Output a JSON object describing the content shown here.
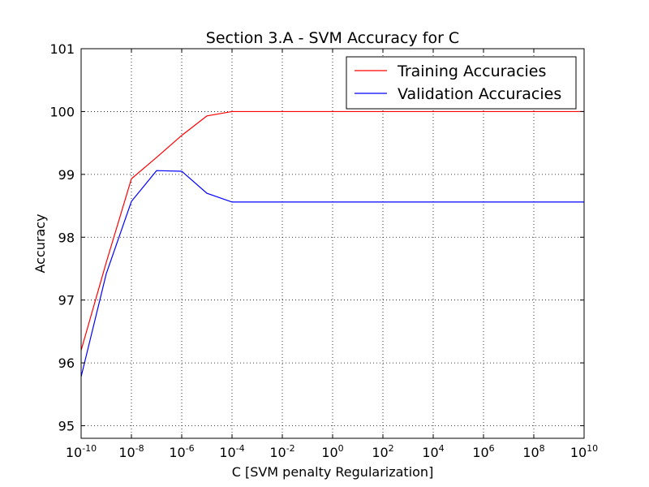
{
  "chart_data": {
    "type": "line",
    "title": "Section 3.A - SVM Accuracy for C",
    "xlabel": "C [SVM penalty Regularization]",
    "ylabel": "Accuracy",
    "x_scale": "log",
    "xlim": [
      1e-10,
      10000000000.0
    ],
    "ylim": [
      94.8,
      101
    ],
    "x_ticks": [
      {
        "base": "10",
        "exp": "-10"
      },
      {
        "base": "10",
        "exp": "-8"
      },
      {
        "base": "10",
        "exp": "-6"
      },
      {
        "base": "10",
        "exp": "-4"
      },
      {
        "base": "10",
        "exp": "-2"
      },
      {
        "base": "10",
        "exp": "0"
      },
      {
        "base": "10",
        "exp": "2"
      },
      {
        "base": "10",
        "exp": "4"
      },
      {
        "base": "10",
        "exp": "6"
      },
      {
        "base": "10",
        "exp": "8"
      },
      {
        "base": "10",
        "exp": "10"
      }
    ],
    "y_ticks": [
      "95",
      "96",
      "97",
      "98",
      "99",
      "100",
      "101"
    ],
    "grid": true,
    "legend_position": "top-right",
    "x": [
      1e-10,
      1e-09,
      1e-08,
      1e-07,
      1e-06,
      1e-05,
      0.0001,
      0.001,
      0.01,
      0.1,
      1,
      10,
      100,
      1000,
      10000,
      100000,
      1000000,
      10000000,
      100000000,
      1000000000,
      10000000000
    ],
    "series": [
      {
        "name": "Training Accuracies",
        "color": "#ff0000",
        "values": [
          96.2,
          97.6,
          98.93,
          99.27,
          99.62,
          99.93,
          100.0,
          100.0,
          100.0,
          100.0,
          100.0,
          100.0,
          100.0,
          100.0,
          100.0,
          100.0,
          100.0,
          100.0,
          100.0,
          100.0,
          100.0
        ]
      },
      {
        "name": "Validation Accuracies",
        "color": "#0000ff",
        "values": [
          95.78,
          97.42,
          98.57,
          99.06,
          99.05,
          98.7,
          98.56,
          98.56,
          98.56,
          98.56,
          98.56,
          98.56,
          98.56,
          98.56,
          98.56,
          98.56,
          98.56,
          98.56,
          98.56,
          98.56,
          98.56
        ]
      }
    ]
  }
}
